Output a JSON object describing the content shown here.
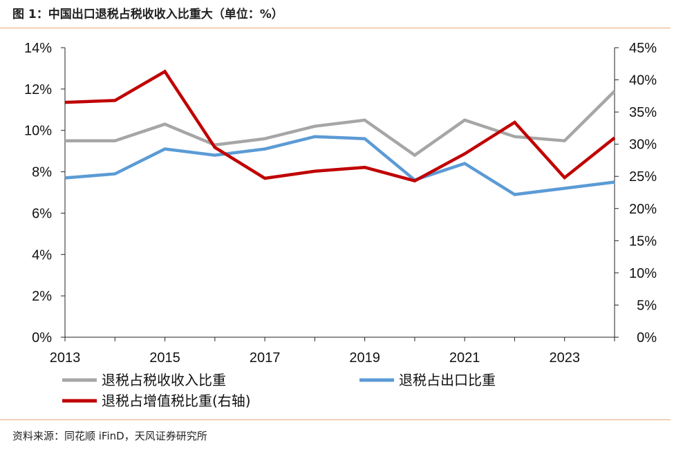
{
  "header": {
    "title": "图 1：中国出口退税占税收收入比重大（单位：%）"
  },
  "footer": {
    "source": "资料来源：同花顺 iFinD，天风证券研究所"
  },
  "chart_data": {
    "type": "line",
    "title": "图 1：中国出口退税占税收收入比重大（单位：%）",
    "x": [
      2013,
      2014,
      2015,
      2016,
      2017,
      2018,
      2019,
      2020,
      2021,
      2022,
      2023,
      2024
    ],
    "x_tick_labels": [
      "2013",
      "2015",
      "2017",
      "2019",
      "2021",
      "2023"
    ],
    "y_left": {
      "range": [
        0,
        14
      ],
      "ticks": [
        "0%",
        "2%",
        "4%",
        "6%",
        "8%",
        "10%",
        "12%",
        "14%"
      ]
    },
    "y_right": {
      "range": [
        0,
        45
      ],
      "ticks": [
        "0%",
        "5%",
        "10%",
        "15%",
        "20%",
        "25%",
        "30%",
        "35%",
        "40%",
        "45%"
      ]
    },
    "grid": false,
    "legend_position": "bottom",
    "series": [
      {
        "name": "退税占税收收入比重",
        "axis": "left",
        "color": "#a6a6a6",
        "values": [
          9.5,
          9.5,
          10.3,
          9.3,
          9.6,
          10.2,
          10.5,
          8.8,
          10.5,
          9.7,
          9.5,
          11.9
        ]
      },
      {
        "name": "退税占出口比重",
        "axis": "left",
        "color": "#5b9bd5",
        "values": [
          7.7,
          7.9,
          9.1,
          8.8,
          9.1,
          9.7,
          9.6,
          7.6,
          8.4,
          6.9,
          7.2,
          7.5
        ]
      },
      {
        "name": "退税占增值税比重(右轴)",
        "axis": "right",
        "color": "#c00000",
        "values": [
          36.5,
          36.8,
          41.3,
          29.5,
          24.7,
          25.8,
          26.4,
          24.3,
          28.5,
          33.4,
          24.8,
          31.0
        ]
      }
    ]
  }
}
